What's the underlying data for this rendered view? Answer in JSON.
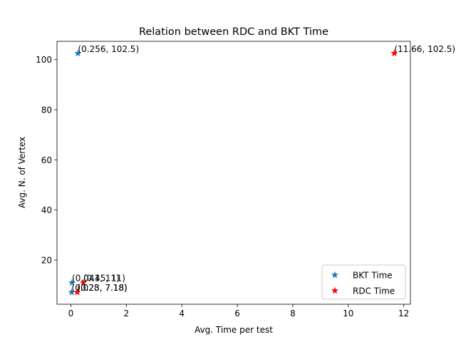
{
  "chart_data": {
    "type": "scatter",
    "title": "Relation between RDC and BKT Time",
    "xlabel": "Avg. Time per test",
    "ylabel": "Avg. N. of Vertex",
    "xlim": [
      -0.5,
      12.24
    ],
    "ylim": [
      2.4,
      107.3
    ],
    "xticks": [
      0,
      2,
      4,
      6,
      8,
      10,
      12
    ],
    "yticks": [
      20,
      40,
      60,
      80,
      100
    ],
    "grid": false,
    "legend": "lower-right",
    "series": [
      {
        "name": "BKT Time",
        "color": "#1f77b4",
        "marker": "star",
        "points": [
          {
            "x": 0.256,
            "y": 102.5,
            "label": "(0.256, 102.5)"
          },
          {
            "x": 0.041,
            "y": 11,
            "label": "(0.041, 11)"
          },
          {
            "x": 0.028,
            "y": 7.18,
            "label": "(0.028, 7.18)"
          }
        ]
      },
      {
        "name": "RDC Time",
        "color": "#ff0000",
        "marker": "star",
        "points": [
          {
            "x": 11.66,
            "y": 102.5,
            "label": "(11.66, 102.5)"
          },
          {
            "x": 0.45,
            "y": 11,
            "label": "(0.45, 11)"
          },
          {
            "x": 0.23,
            "y": 7.18,
            "label": "(0.23, 7.18)"
          }
        ]
      }
    ]
  }
}
